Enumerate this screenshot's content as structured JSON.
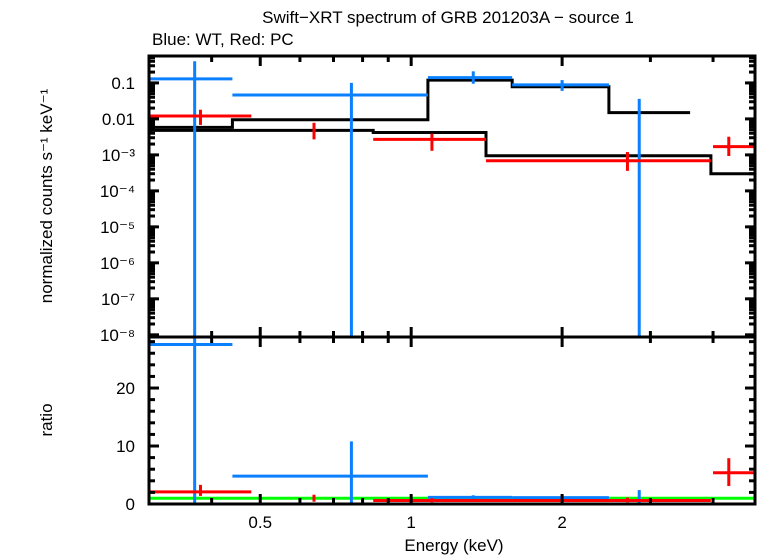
{
  "chart_data": [
    {
      "type": "scatter",
      "panel": "top",
      "title": "Swift−XRT spectrum of GRB 201203A − source 1",
      "subtitle": "Blue: WT, Red: PC",
      "xlabel": "Energy (keV)",
      "ylabel": "normalized counts s⁻¹ keV⁻¹",
      "xscale": "log",
      "yscale": "log",
      "xlim": [
        0.3,
        4.85
      ],
      "ylim": [
        8.7e-09,
        0.56
      ],
      "yticks": [
        {
          "value": 0.1,
          "label": "0.1"
        },
        {
          "value": 0.01,
          "label": "0.01"
        },
        {
          "value": 0.001,
          "label": "10⁻³"
        },
        {
          "value": 0.0001,
          "label": "10⁻⁴"
        },
        {
          "value": 1e-05,
          "label": "10⁻⁵"
        },
        {
          "value": 1e-06,
          "label": "10⁻⁶"
        },
        {
          "value": 1e-07,
          "label": "10⁻⁷"
        },
        {
          "value": 1e-08,
          "label": "10⁻⁸"
        }
      ],
      "series": [
        {
          "name": "WT",
          "color": "#0a80ff",
          "points": [
            {
              "x": 0.37,
              "xlo": 0.3,
              "xhi": 0.44,
              "y": 0.13,
              "ylo": 8.7e-09,
              "yhi": 0.4
            },
            {
              "x": 0.76,
              "xlo": 0.44,
              "xhi": 1.08,
              "y": 0.046,
              "ylo": 8.7e-09,
              "yhi": 0.1
            },
            {
              "x": 1.33,
              "xlo": 1.08,
              "xhi": 1.59,
              "y": 0.14,
              "ylo": 0.095,
              "yhi": 0.21
            },
            {
              "x": 2.0,
              "xlo": 1.59,
              "xhi": 2.48,
              "y": 0.088,
              "ylo": 0.06,
              "yhi": 0.12
            },
            {
              "x": 2.85,
              "xlo": 2.85,
              "xhi": 2.85,
              "y": 0.003,
              "ylo": 8.7e-09,
              "yhi": 0.036
            }
          ]
        },
        {
          "name": "PC",
          "color": "#ff0000",
          "points": [
            {
              "x": 0.38,
              "xlo": 0.3,
              "xhi": 0.48,
              "y": 0.012,
              "ylo": 0.0068,
              "yhi": 0.018
            },
            {
              "x": 0.64,
              "xlo": 0.64,
              "xhi": 0.64,
              "y": 0.0055,
              "ylo": 0.0027,
              "yhi": 0.0078
            },
            {
              "x": 1.1,
              "xlo": 0.84,
              "xhi": 1.41,
              "y": 0.0027,
              "ylo": 0.0013,
              "yhi": 0.0039
            },
            {
              "x": 2.7,
              "xlo": 1.41,
              "xhi": 3.96,
              "y": 0.00069,
              "ylo": 0.00036,
              "yhi": 0.0012
            },
            {
              "x": 4.3,
              "xlo": 4.0,
              "xhi": 4.85,
              "y": 0.0017,
              "ylo": 0.00093,
              "yhi": 0.0032
            }
          ]
        }
      ],
      "models": [
        {
          "name": "WT model",
          "color": "#000000",
          "steps": [
            {
              "xlo": 0.3,
              "xhi": 0.44,
              "y": 0.0058
            },
            {
              "xlo": 0.44,
              "xhi": 1.08,
              "y": 0.0095
            },
            {
              "xlo": 1.08,
              "xhi": 1.59,
              "y": 0.12
            },
            {
              "xlo": 1.59,
              "xhi": 2.48,
              "y": 0.078
            },
            {
              "xlo": 2.48,
              "xhi": 3.6,
              "y": 0.015
            }
          ]
        },
        {
          "name": "PC model",
          "color": "#000000",
          "steps": [
            {
              "xlo": 0.3,
              "xhi": 0.48,
              "y": 0.0048
            },
            {
              "xlo": 0.48,
              "xhi": 0.84,
              "y": 0.0048
            },
            {
              "xlo": 0.84,
              "xhi": 1.41,
              "y": 0.0042
            },
            {
              "xlo": 1.41,
              "xhi": 3.96,
              "y": 0.00095
            },
            {
              "xlo": 3.96,
              "xhi": 4.85,
              "y": 0.0003
            }
          ]
        }
      ]
    },
    {
      "type": "scatter",
      "panel": "bottom",
      "xlabel": "Energy (keV)",
      "ylabel": "ratio",
      "xscale": "log",
      "yscale": "linear",
      "xlim": [
        0.3,
        4.85
      ],
      "ylim": [
        0,
        28.8
      ],
      "xticks": [
        {
          "value": 0.5,
          "label": "0.5"
        },
        {
          "value": 1,
          "label": "1"
        },
        {
          "value": 2,
          "label": "2"
        }
      ],
      "yticks": [
        {
          "value": 0,
          "label": "0"
        },
        {
          "value": 10,
          "label": "10"
        },
        {
          "value": 20,
          "label": "20"
        }
      ],
      "reference_line": {
        "y": 1,
        "color": "#00ff00"
      },
      "series": [
        {
          "name": "WT",
          "color": "#0a80ff",
          "points": [
            {
              "x": 0.37,
              "xlo": 0.3,
              "xhi": 0.44,
              "y": 27.5,
              "ylo": 0,
              "yhi": 28.8
            },
            {
              "x": 0.76,
              "xlo": 0.44,
              "xhi": 1.08,
              "y": 4.8,
              "ylo": 0,
              "yhi": 10.8
            },
            {
              "x": 1.33,
              "xlo": 1.08,
              "xhi": 1.59,
              "y": 1.15,
              "ylo": 0.8,
              "yhi": 1.5
            },
            {
              "x": 2.0,
              "xlo": 1.59,
              "xhi": 2.48,
              "y": 1.1,
              "ylo": 0.75,
              "yhi": 1.5
            },
            {
              "x": 2.85,
              "xlo": 2.85,
              "xhi": 2.85,
              "y": 0.5,
              "ylo": 0,
              "yhi": 2.4
            }
          ]
        },
        {
          "name": "PC",
          "color": "#ff0000",
          "points": [
            {
              "x": 0.38,
              "xlo": 0.3,
              "xhi": 0.48,
              "y": 2.1,
              "ylo": 1.4,
              "yhi": 3.3
            },
            {
              "x": 0.64,
              "xlo": 0.64,
              "xhi": 0.64,
              "y": 1.0,
              "ylo": 0.4,
              "yhi": 1.6
            },
            {
              "x": 1.1,
              "xlo": 0.84,
              "xhi": 1.41,
              "y": 0.6,
              "ylo": 0.3,
              "yhi": 1.0
            },
            {
              "x": 2.7,
              "xlo": 1.41,
              "xhi": 3.96,
              "y": 0.6,
              "ylo": 0.3,
              "yhi": 1.1
            },
            {
              "x": 4.3,
              "xlo": 4.0,
              "xhi": 4.85,
              "y": 5.4,
              "ylo": 3.1,
              "yhi": 7.9
            }
          ]
        }
      ]
    }
  ]
}
